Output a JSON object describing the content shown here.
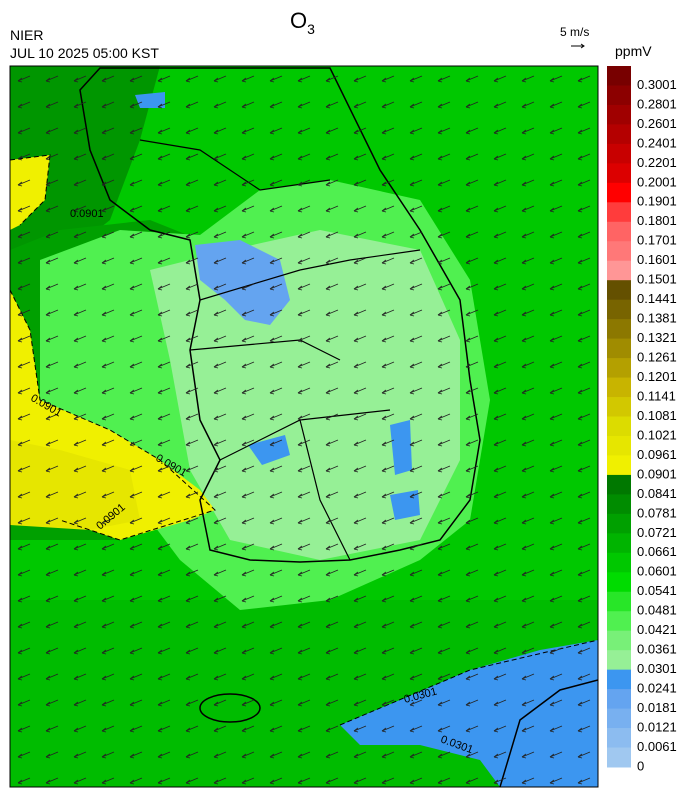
{
  "title": {
    "text": "O",
    "subscript": "3"
  },
  "agency": "NIER",
  "timestamp": "JUL 10 2025 05:00 KST",
  "wind_scale": "5 m/s",
  "unit": "ppmV",
  "colorbar": {
    "levels": [
      0.3001,
      0.2801,
      0.2601,
      0.2401,
      0.2201,
      0.2001,
      0.1901,
      0.1801,
      0.1701,
      0.1601,
      0.1501,
      0.1441,
      0.1381,
      0.1321,
      0.1261,
      0.1201,
      0.1141,
      0.1081,
      0.1021,
      0.0961,
      0.0901,
      0.0841,
      0.0781,
      0.0721,
      0.0661,
      0.0601,
      0.0541,
      0.0481,
      0.0421,
      0.0361,
      0.0301,
      0.0241,
      0.0181,
      0.0121,
      0.0061,
      0
    ],
    "colors": [
      "#780000",
      "#8c0000",
      "#a00000",
      "#b40000",
      "#c80000",
      "#dc0000",
      "#ff0000",
      "#ff3c3c",
      "#ff6464",
      "#ff7878",
      "#ff9696",
      "#645000",
      "#786400",
      "#8c7800",
      "#a08c00",
      "#b4a000",
      "#c8b400",
      "#d2c800",
      "#dcdc00",
      "#e6e600",
      "#f0f000",
      "#007800",
      "#008c00",
      "#00a000",
      "#00b400",
      "#00c800",
      "#00dc00",
      "#28e628",
      "#50f050",
      "#78f078",
      "#96f096",
      "#3c96f0",
      "#64a4f0",
      "#78b0f0",
      "#8cbcf0",
      "#a0c8f0"
    ]
  },
  "contour_labels": [
    "0.0901",
    "0.0901",
    "0.0901",
    "0.0901",
    "0.0301",
    "0.0301"
  ]
}
